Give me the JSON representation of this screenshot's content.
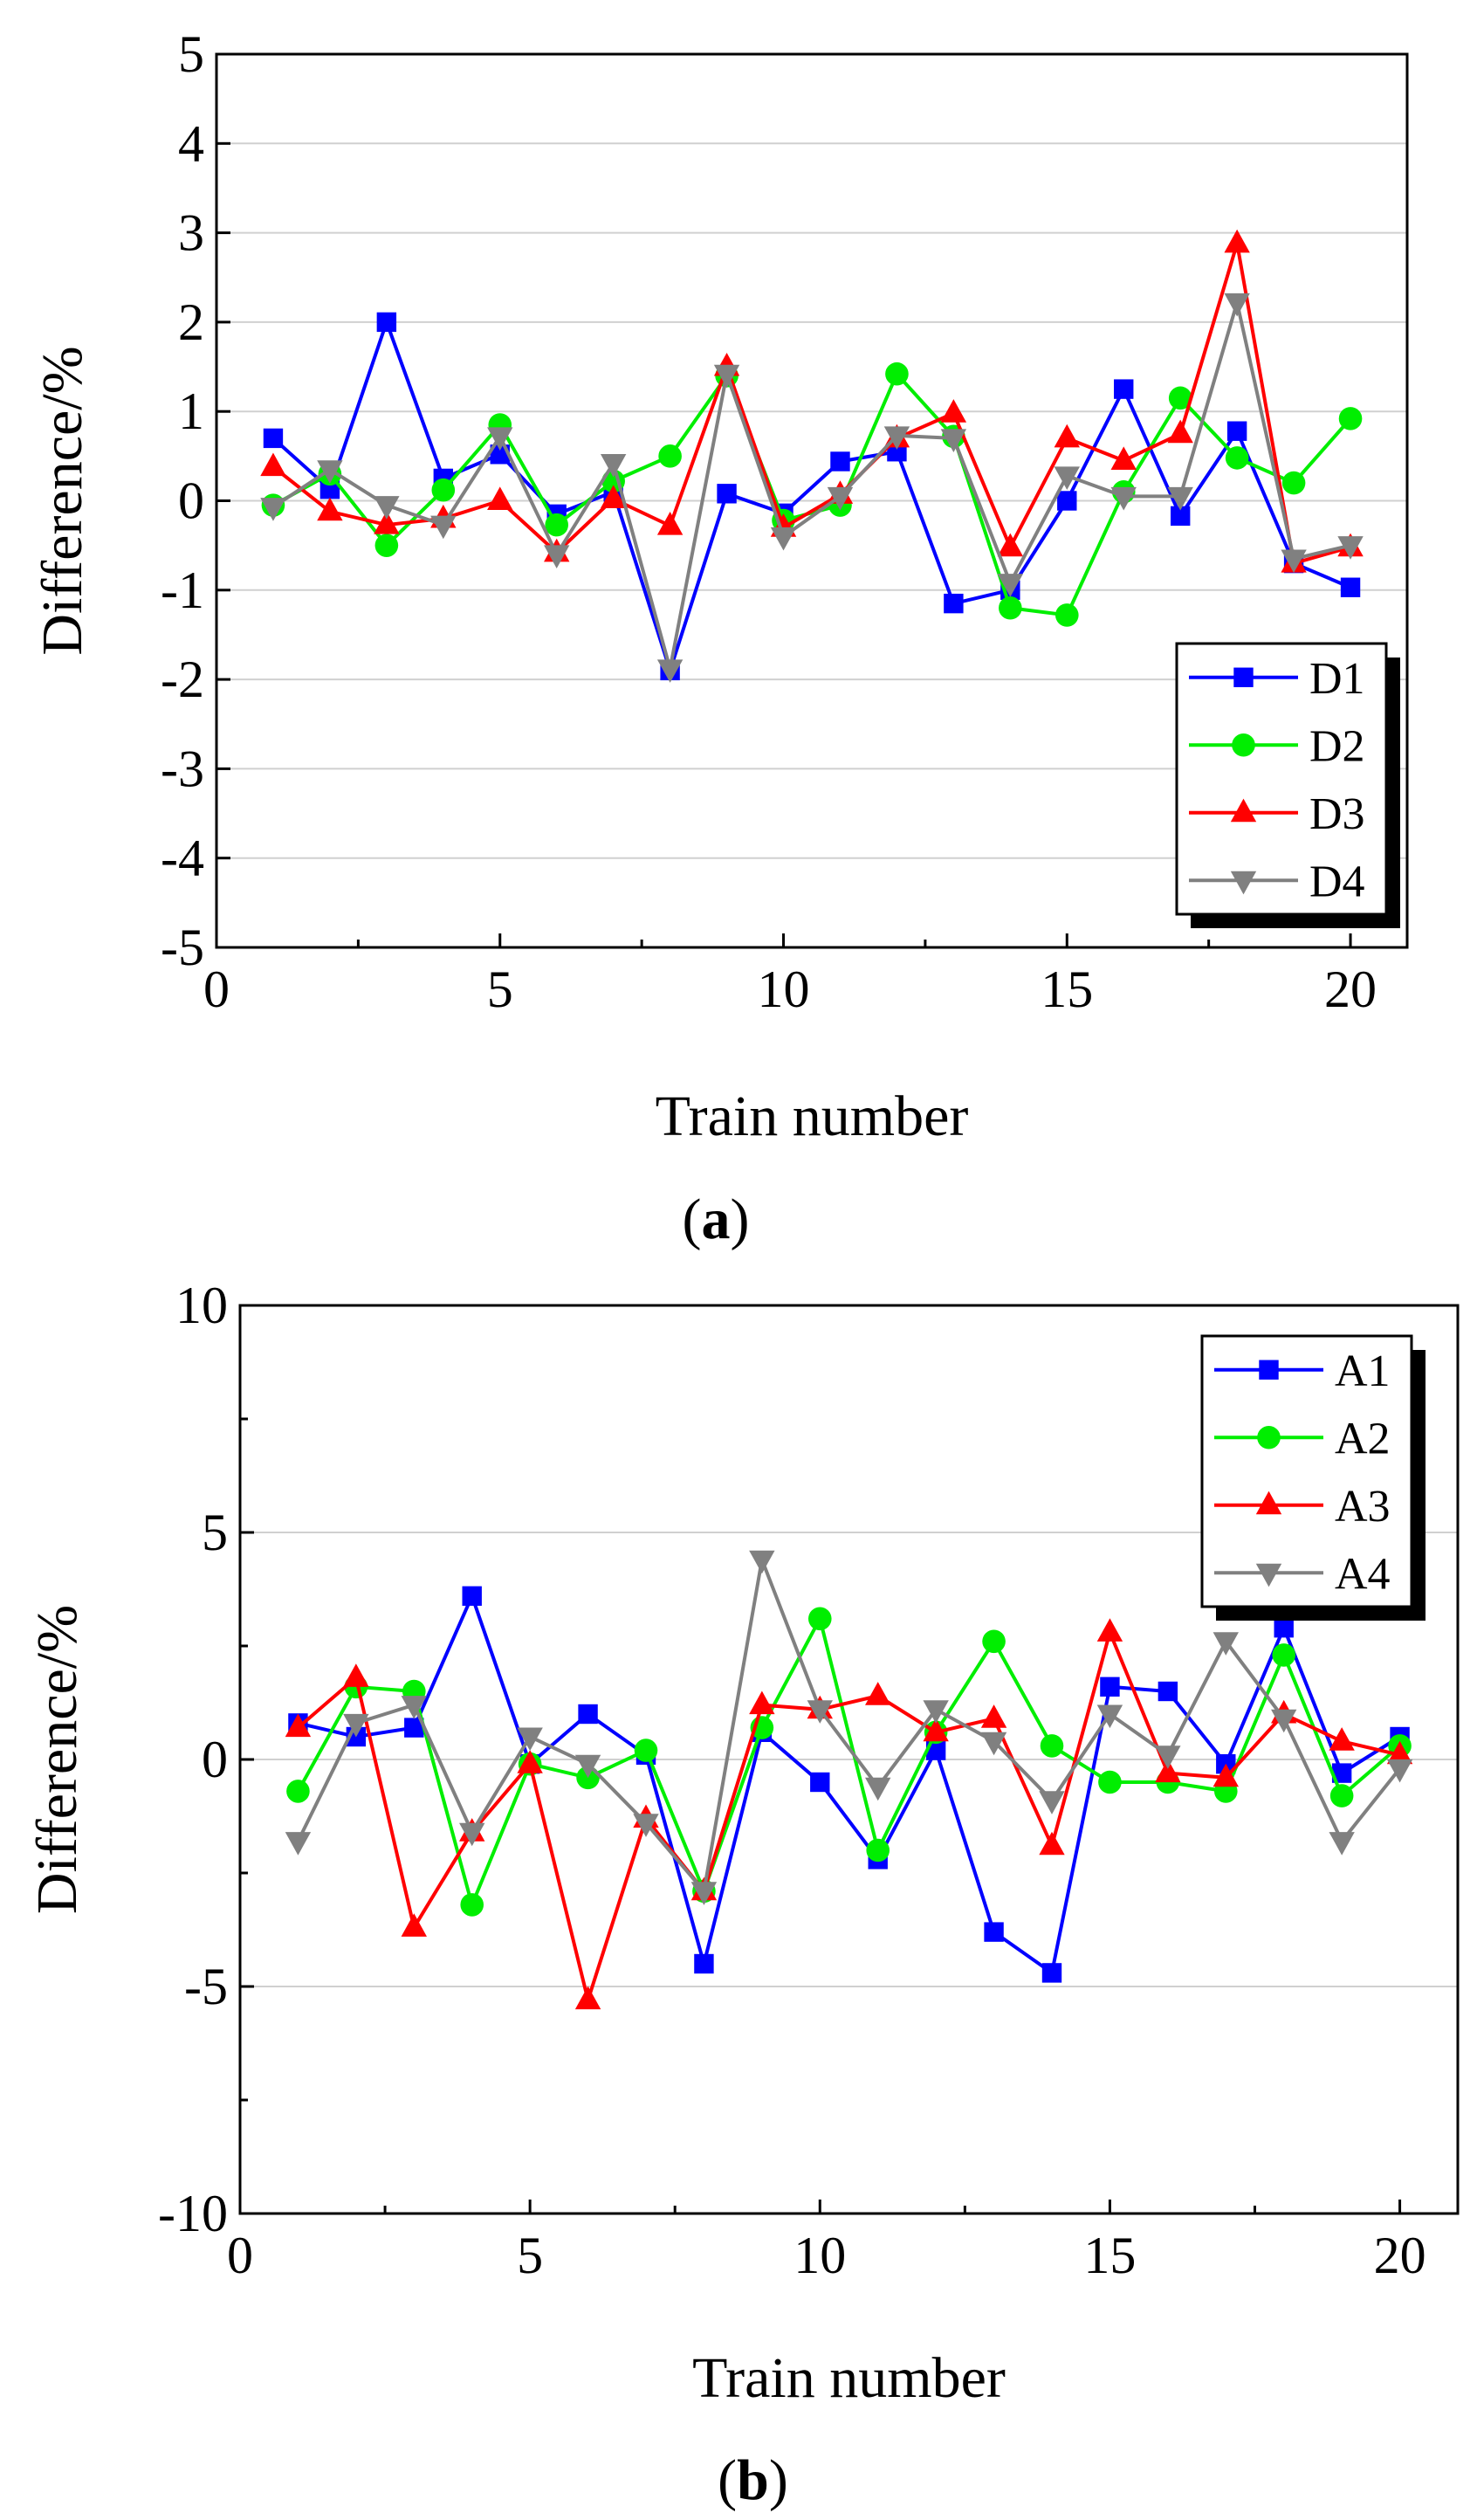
{
  "chart_data": [
    {
      "type": "line",
      "panel_label": "a",
      "title": "",
      "xlabel": "Train number",
      "ylabel": "Difference/%",
      "xlim": [
        0,
        21
      ],
      "ylim": [
        -5,
        5
      ],
      "xticks": [
        0,
        5,
        10,
        15,
        20
      ],
      "yticks": [
        -5,
        -4,
        -3,
        -2,
        -1,
        0,
        1,
        2,
        3,
        4,
        5
      ],
      "grid": "horizontal",
      "legend_position": "bottom-right",
      "x": [
        1,
        2,
        3,
        4,
        5,
        6,
        7,
        8,
        9,
        10,
        11,
        12,
        13,
        14,
        15,
        16,
        17,
        18,
        19,
        20
      ],
      "series": [
        {
          "name": "D1",
          "color": "#0000ff",
          "marker": "square",
          "values": [
            0.7,
            0.13,
            2.0,
            0.25,
            0.52,
            -0.15,
            0.1,
            -1.9,
            0.08,
            -0.14,
            0.44,
            0.55,
            -1.15,
            -1.0,
            0.0,
            1.25,
            -0.17,
            0.78,
            -0.7,
            -0.97
          ]
        },
        {
          "name": "D2",
          "color": "#00ee00",
          "marker": "circle",
          "values": [
            -0.05,
            0.3,
            -0.5,
            0.12,
            0.85,
            -0.27,
            0.22,
            0.5,
            1.4,
            -0.22,
            -0.05,
            1.42,
            0.72,
            -1.2,
            -1.28,
            0.1,
            1.15,
            0.48,
            0.2,
            0.92
          ]
        },
        {
          "name": "D3",
          "color": "#ff0000",
          "marker": "triangle-up",
          "values": [
            0.38,
            -0.12,
            -0.27,
            -0.2,
            0.0,
            -0.58,
            0.02,
            -0.28,
            1.5,
            -0.3,
            0.07,
            0.7,
            0.98,
            -0.52,
            0.7,
            0.45,
            0.75,
            2.88,
            -0.7,
            -0.52
          ]
        },
        {
          "name": "D4",
          "color": "#808080",
          "marker": "triangle-down",
          "values": [
            -0.07,
            0.35,
            -0.05,
            -0.27,
            0.72,
            -0.6,
            0.42,
            -1.88,
            1.42,
            -0.4,
            0.05,
            0.73,
            0.7,
            -0.92,
            0.28,
            0.05,
            0.05,
            2.22,
            -0.65,
            -0.5
          ]
        }
      ]
    },
    {
      "type": "line",
      "panel_label": "b",
      "title": "",
      "xlabel": "Train number",
      "ylabel": "Difference/%",
      "xlim": [
        0,
        21
      ],
      "ylim": [
        -10,
        10
      ],
      "xticks": [
        0,
        5,
        10,
        15,
        20
      ],
      "yticks": [
        -10,
        -5,
        0,
        5,
        10
      ],
      "grid": "horizontal",
      "legend_position": "top-right",
      "x": [
        1,
        2,
        3,
        4,
        5,
        6,
        7,
        8,
        9,
        10,
        11,
        12,
        13,
        14,
        15,
        16,
        17,
        18,
        19,
        20
      ],
      "series": [
        {
          "name": "A1",
          "color": "#0000ff",
          "marker": "square",
          "values": [
            0.8,
            0.5,
            0.7,
            3.6,
            -0.1,
            1.0,
            0.1,
            -4.5,
            0.6,
            -0.5,
            -2.2,
            0.2,
            -3.8,
            -4.7,
            1.6,
            1.5,
            -0.1,
            2.9,
            -0.3,
            0.5
          ]
        },
        {
          "name": "A2",
          "color": "#00ee00",
          "marker": "circle",
          "values": [
            -0.7,
            1.6,
            1.5,
            -3.2,
            -0.1,
            -0.4,
            0.2,
            -2.9,
            0.7,
            3.1,
            -2.0,
            0.6,
            2.6,
            0.3,
            -0.5,
            -0.5,
            -0.7,
            2.3,
            -0.8,
            0.3
          ]
        },
        {
          "name": "A3",
          "color": "#ff0000",
          "marker": "triangle-up",
          "values": [
            0.7,
            1.8,
            -3.7,
            -1.6,
            -0.1,
            -5.3,
            -1.3,
            -2.9,
            1.2,
            1.1,
            1.4,
            0.6,
            0.9,
            -1.9,
            2.8,
            -0.3,
            -0.4,
            1.0,
            0.4,
            0.1
          ]
        },
        {
          "name": "A4",
          "color": "#808080",
          "marker": "triangle-down",
          "values": [
            -1.8,
            0.8,
            1.2,
            -1.6,
            0.5,
            -0.1,
            -1.4,
            -2.9,
            4.4,
            1.1,
            -0.6,
            1.1,
            0.4,
            -0.9,
            1.0,
            0.1,
            2.6,
            0.9,
            -1.8,
            -0.2
          ]
        }
      ]
    }
  ]
}
